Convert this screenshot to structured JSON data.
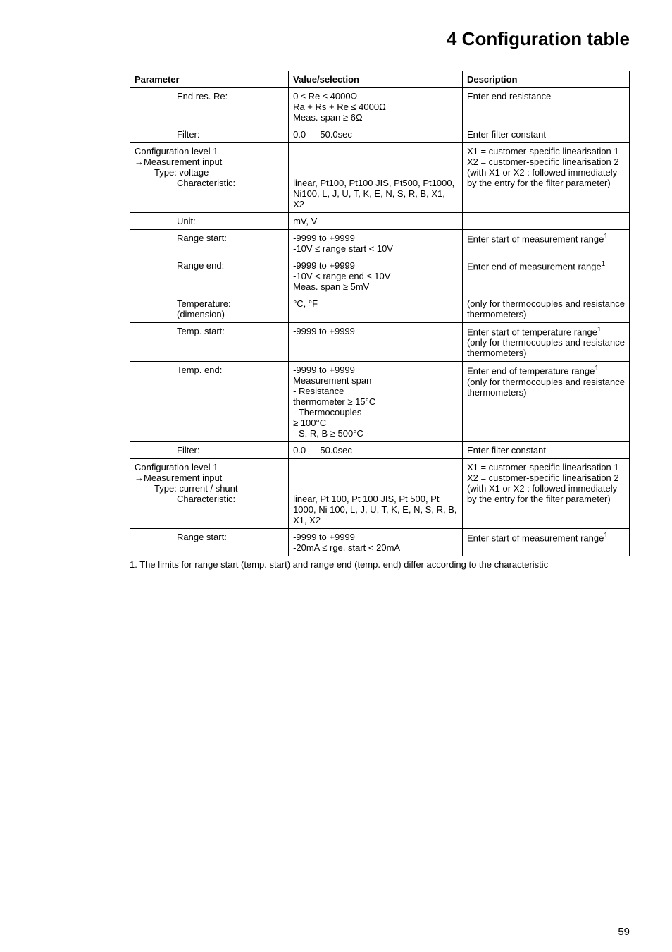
{
  "chapter_title": "4 Configuration table",
  "table": {
    "headers": {
      "param": "Parameter",
      "value": "Value/selection",
      "desc": "Description"
    },
    "rows": [
      {
        "param_indent": 2,
        "param": "End res. Re:",
        "value": "0 ≤ Re ≤ 4000Ω\nRa + Rs + Re ≤ 4000Ω\nMeas. span ≥ 6Ω",
        "desc": "Enter end resistance"
      },
      {
        "param_indent": 2,
        "param": "Filter:",
        "value": "0.0 — 50.0sec",
        "desc": "Enter filter constant"
      },
      {
        "multi": true,
        "param_lines": [
          {
            "text": "Configuration level 1",
            "indent": 0
          },
          {
            "text": "Measurement input",
            "indent": 0,
            "arrow": true
          },
          {
            "text": "Type: voltage",
            "indent": 1
          },
          {
            "text": "Characteristic:",
            "indent": 2
          }
        ],
        "value": "\n\n\nlinear, Pt100, Pt100 JIS, Pt500, Pt1000, Ni100, L, J, U, T, K, E, N, S, R, B, X1, X2",
        "desc": "X1 = customer-specific linearisation 1\nX2 = customer-specific linearisation 2\n(with X1 or X2 : followed immediately by the entry for the filter parameter)"
      },
      {
        "param_indent": 2,
        "param": "Unit:",
        "value": "mV, V",
        "desc": ""
      },
      {
        "param_indent": 2,
        "param": "Range start:",
        "value": "-9999 to +9999\n-10V ≤ range start < 10V",
        "desc": "Enter start of measurement range",
        "desc_sup": "1"
      },
      {
        "param_indent": 2,
        "param": "Range end:",
        "value": "-9999 to +9999\n-10V < range end ≤ 10V\nMeas. span ≥ 5mV",
        "desc": "Enter end of measurement range",
        "desc_sup": "1"
      },
      {
        "param_indent": 2,
        "param": "Temperature:\n(dimension)",
        "value": "°C, °F",
        "desc": "(only for thermocouples and resistance thermometers)"
      },
      {
        "param_indent": 2,
        "param": "Temp. start:",
        "value": "-9999 to +9999",
        "desc_lines": [
          {
            "text": "Enter start of temperature range",
            "sup": "1"
          },
          {
            "text": "(only for thermocouples and resistance thermometers)"
          }
        ]
      },
      {
        "param_indent": 2,
        "param": "Temp. end:",
        "value": "-9999 to +9999\nMeasurement span\n-  Resistance\n   thermometer ≥ 15°C\n-  Thermocouples\n   ≥ 100°C\n-  S, R, B  ≥ 500°C",
        "desc_lines": [
          {
            "text": "Enter end of temperature range",
            "sup": "1"
          },
          {
            "text": "(only for thermocouples and resistance thermometers)"
          }
        ]
      },
      {
        "param_indent": 2,
        "param": "Filter:",
        "value": "0.0 — 50.0sec",
        "desc": "Enter filter constant"
      },
      {
        "multi": true,
        "param_lines": [
          {
            "text": "Configuration level 1",
            "indent": 0
          },
          {
            "text": "Measurement input",
            "indent": 0,
            "arrow": true
          },
          {
            "text": "Type: current / shunt",
            "indent": 1
          },
          {
            "text": "Characteristic:",
            "indent": 2
          }
        ],
        "value": "\n\n\nlinear, Pt 100, Pt 100 JIS, Pt 500, Pt 1000, Ni 100, L, J, U, T, K, E, N, S, R, B, X1, X2",
        "desc": "X1 = customer-specific linearisation 1\nX2 = customer-specific linearisation 2\n(with X1 or X2 : followed immediately by the entry for the filter parameter)"
      },
      {
        "param_indent": 2,
        "param": "Range start:",
        "value": "-9999 to +9999\n-20mA ≤ rge. start < 20mA",
        "desc": "Enter start of measurement range",
        "desc_sup": "1"
      }
    ]
  },
  "footnote": "1.  The limits for range start (temp. start) and range end (temp. end) differ according to the characteristic",
  "page_number": "59"
}
